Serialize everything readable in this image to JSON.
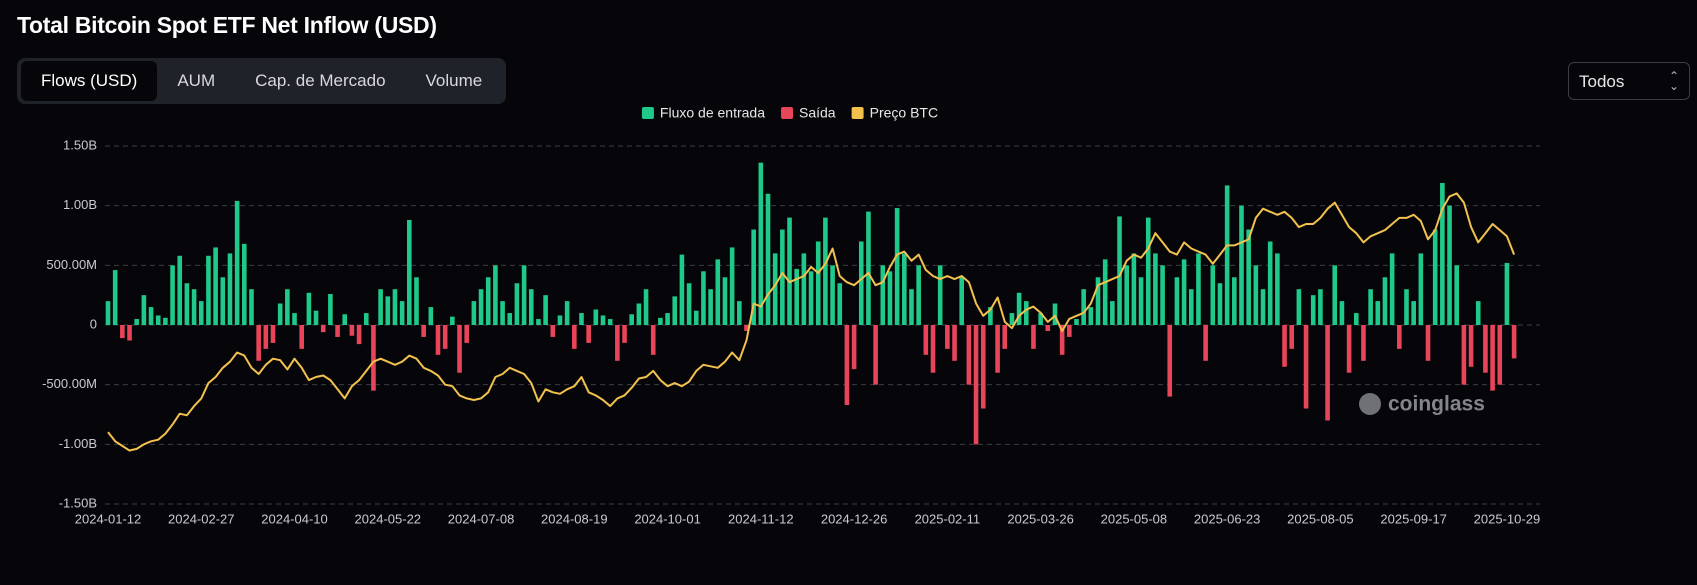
{
  "tabs": [
    "Flows (USD)",
    "AUM",
    "Cap. de Mercado",
    "Volume"
  ],
  "selector": "Todos",
  "chart_data": {
    "type": "bar",
    "title": "Total Bitcoin Spot ETF Net Inflow (USD)",
    "watermark": "coinglass",
    "grid": true,
    "ylim": [
      -1500000000,
      1500000000
    ],
    "yticks": [
      {
        "value": -1500000000,
        "label": "-1.50B"
      },
      {
        "value": -1000000000,
        "label": "-1.00B"
      },
      {
        "value": -500000000,
        "label": "-500.00M"
      },
      0,
      {
        "value": 500000000,
        "label": "500.00M"
      },
      {
        "value": 1000000000,
        "label": "1.00B"
      },
      {
        "value": 1500000000,
        "label": "1.50B"
      }
    ],
    "y2lim": [
      22500,
      139500
    ],
    "categories": [
      "2024-01-12",
      null,
      null,
      null,
      null,
      null,
      null,
      null,
      null,
      null,
      null,
      null,
      null,
      "2024-02-27",
      null,
      null,
      null,
      null,
      null,
      null,
      null,
      null,
      null,
      null,
      null,
      null,
      "2024-04-10",
      null,
      null,
      null,
      null,
      null,
      null,
      null,
      null,
      null,
      null,
      null,
      null,
      "2024-05-22",
      null,
      null,
      null,
      null,
      null,
      null,
      null,
      null,
      null,
      null,
      null,
      null,
      "2024-07-08",
      null,
      null,
      null,
      null,
      null,
      null,
      null,
      null,
      null,
      null,
      null,
      null,
      "2024-08-19",
      null,
      null,
      null,
      null,
      null,
      null,
      null,
      null,
      null,
      null,
      null,
      null,
      "2024-10-01",
      null,
      null,
      null,
      null,
      null,
      null,
      null,
      null,
      null,
      null,
      null,
      null,
      "2024-11-12",
      null,
      null,
      null,
      null,
      null,
      null,
      null,
      null,
      null,
      null,
      null,
      null,
      "2024-12-26",
      null,
      null,
      null,
      null,
      null,
      null,
      null,
      null,
      null,
      null,
      null,
      null,
      "2025-02-11",
      null,
      null,
      null,
      null,
      null,
      null,
      null,
      null,
      null,
      null,
      null,
      null,
      "2025-03-26",
      null,
      null,
      null,
      null,
      null,
      null,
      null,
      null,
      null,
      null,
      null,
      null,
      "2025-05-08",
      null,
      null,
      null,
      null,
      null,
      null,
      null,
      null,
      null,
      null,
      null,
      null,
      "2025-06-23",
      null,
      null,
      null,
      null,
      null,
      null,
      null,
      null,
      null,
      null,
      null,
      null,
      "2025-08-05",
      null,
      null,
      null,
      null,
      null,
      null,
      null,
      null,
      null,
      null,
      null,
      null,
      "2025-09-17",
      null,
      null,
      null,
      null,
      null,
      null,
      null,
      null,
      null,
      null,
      null,
      null,
      "2025-10-29",
      null
    ],
    "series": [
      {
        "name": "Fluxo de entrada",
        "color": "#1fc98a",
        "values": [
          200000000.0,
          460000000.0,
          null,
          null,
          50000000.0,
          250000000.0,
          150000000.0,
          80000000.0,
          60000000.0,
          500000000.0,
          580000000.0,
          350000000.0,
          300000000.0,
          200000000.0,
          580000000.0,
          650000000.0,
          400000000.0,
          600000000.0,
          1040000000.0,
          680000000.0,
          300000000.0,
          null,
          null,
          null,
          180000000.0,
          300000000.0,
          100000000.0,
          null,
          270000000.0,
          120000000.0,
          null,
          260000000.0,
          null,
          90000000.0,
          null,
          null,
          100000000.0,
          null,
          300000000.0,
          240000000.0,
          300000000.0,
          200000000.0,
          880000000.0,
          400000000.0,
          null,
          150000000.0,
          null,
          null,
          70000000.0,
          null,
          null,
          200000000.0,
          300000000.0,
          400000000.0,
          500000000.0,
          200000000.0,
          100000000.0,
          350000000.0,
          500000000.0,
          300000000.0,
          50000000.0,
          250000000.0,
          null,
          80000000.0,
          200000000.0,
          null,
          100000000.0,
          null,
          130000000.0,
          80000000.0,
          50000000.0,
          null,
          null,
          90000000.0,
          180000000.0,
          300000000.0,
          null,
          60000000.0,
          100000000.0,
          240000000.0,
          590000000.0,
          350000000.0,
          120000000.0,
          450000000.0,
          300000000.0,
          550000000.0,
          400000000.0,
          650000000.0,
          200000000.0,
          null,
          800000000.0,
          1360000000.0,
          1100000000.0,
          600000000.0,
          800000000.0,
          900000000.0,
          470000000.0,
          600000000.0,
          450000000.0,
          700000000.0,
          900000000.0,
          500000000.0,
          350000000.0,
          null,
          null,
          700000000.0,
          950000000.0,
          null,
          500000000.0,
          450000000.0,
          980000000.0,
          600000000.0,
          300000000.0,
          500000000.0,
          null,
          null,
          500000000.0,
          null,
          null,
          400000000.0,
          null,
          null,
          null,
          150000000.0,
          null,
          null,
          100000000.0,
          270000000.0,
          200000000.0,
          null,
          100000000.0,
          null,
          180000000.0,
          null,
          null,
          50000000.0,
          300000000.0,
          150000000.0,
          400000000.0,
          550000000.0,
          200000000.0,
          910000000.0,
          500000000.0,
          600000000.0,
          400000000.0,
          900000000.0,
          600000000.0,
          500000000.0,
          null,
          400000000.0,
          550000000.0,
          300000000.0,
          600000000.0,
          null,
          500000000.0,
          350000000.0,
          1170000000.0,
          400000000.0,
          1000000000.0,
          800000000.0,
          500000000.0,
          300000000.0,
          700000000.0,
          600000000.0,
          null,
          null,
          300000000.0,
          null,
          250000000.0,
          300000000.0,
          null,
          500000000.0,
          200000000.0,
          null,
          100000000.0,
          null,
          300000000.0,
          200000000.0,
          400000000.0,
          600000000.0,
          null,
          300000000.0,
          200000000.0,
          600000000.0,
          null,
          800000000.0,
          1190000000.0,
          1000000000.0,
          500000000.0,
          null,
          null,
          200000000.0,
          null,
          null,
          null,
          520000000.0,
          null
        ]
      },
      {
        "name": "Saída",
        "color": "#e8445a",
        "values": [
          null,
          null,
          -110000000.0,
          -130000000.0,
          null,
          null,
          null,
          null,
          null,
          null,
          null,
          null,
          null,
          null,
          null,
          null,
          null,
          null,
          null,
          null,
          null,
          -300000000.0,
          -200000000.0,
          -150000000.0,
          null,
          null,
          null,
          -200000000.0,
          null,
          null,
          -60000000.0,
          null,
          -100000000.0,
          null,
          -90000000.0,
          -160000000.0,
          null,
          -550000000.0,
          null,
          null,
          null,
          null,
          null,
          null,
          -100000000.0,
          null,
          -250000000.0,
          -200000000.0,
          null,
          -400000000.0,
          -150000000.0,
          null,
          null,
          null,
          null,
          null,
          null,
          null,
          null,
          null,
          null,
          null,
          -100000000.0,
          null,
          null,
          -200000000.0,
          null,
          -150000000.0,
          null,
          null,
          null,
          -300000000.0,
          -150000000.0,
          null,
          null,
          null,
          -250000000.0,
          null,
          null,
          null,
          null,
          null,
          null,
          null,
          null,
          null,
          null,
          null,
          null,
          -50000000.0,
          null,
          null,
          null,
          null,
          null,
          null,
          null,
          null,
          null,
          null,
          null,
          null,
          null,
          -670000000.0,
          -370000000.0,
          null,
          null,
          -500000000.0,
          null,
          null,
          null,
          null,
          null,
          null,
          -250000000.0,
          -400000000.0,
          null,
          -200000000.0,
          -300000000.0,
          null,
          -500000000.0,
          -1000000000.0,
          -700000000.0,
          null,
          -400000000.0,
          -200000000.0,
          null,
          null,
          null,
          -200000000.0,
          null,
          -50000000.0,
          null,
          -250000000.0,
          -100000000.0,
          null,
          null,
          null,
          null,
          null,
          null,
          null,
          null,
          null,
          null,
          null,
          null,
          null,
          -600000000.0,
          null,
          null,
          null,
          null,
          -300000000.0,
          null,
          null,
          null,
          null,
          null,
          null,
          null,
          null,
          null,
          null,
          -350000000.0,
          -200000000.0,
          null,
          -700000000.0,
          null,
          null,
          -800000000.0,
          null,
          null,
          -400000000.0,
          null,
          -300000000.0,
          null,
          null,
          null,
          null,
          -200000000.0,
          null,
          null,
          null,
          -300000000.0,
          null,
          null,
          null,
          null,
          -500000000.0,
          -350000000.0,
          null,
          -400000000.0,
          -550000000.0,
          -500000000.0,
          null,
          -280000000.0
        ]
      },
      {
        "name": "Preço BTC",
        "color": "#f2c14e",
        "axis": "y2",
        "type": "line",
        "values": [
          46000,
          43000,
          41500,
          40000,
          40500,
          42000,
          43000,
          43500,
          45500,
          48500,
          52000,
          51500,
          54500,
          57000,
          62000,
          64000,
          67000,
          69000,
          72000,
          71000,
          67000,
          65000,
          68000,
          70000,
          69500,
          66500,
          70000,
          67000,
          63000,
          64000,
          64500,
          63000,
          60000,
          57000,
          61000,
          63000,
          66000,
          69000,
          70000,
          69000,
          68000,
          69000,
          71000,
          70000,
          67000,
          66000,
          64500,
          61500,
          61000,
          58000,
          57000,
          56500,
          57000,
          59000,
          64000,
          65000,
          67000,
          66000,
          65000,
          62000,
          56000,
          60000,
          59000,
          58500,
          60000,
          61000,
          64000,
          59000,
          58000,
          56500,
          54500,
          57000,
          58000,
          60500,
          63500,
          64000,
          66000,
          63000,
          61000,
          62000,
          61000,
          62500,
          66000,
          68000,
          67500,
          67000,
          69000,
          72000,
          69500,
          76000,
          88000,
          87000,
          91000,
          94000,
          98000,
          95000,
          96000,
          97000,
          100000,
          98000,
          101000,
          106000,
          97000,
          95000,
          94000,
          96000,
          98000,
          94000,
          95000,
          100000,
          104000,
          105000,
          102000,
          104000,
          99000,
          97000,
          96000,
          97000,
          96000,
          97000,
          95000,
          88000,
          84000,
          86000,
          90000,
          82000,
          80000,
          84000,
          86000,
          87000,
          85000,
          82000,
          84000,
          79000,
          83000,
          84000,
          85000,
          88000,
          94000,
          95000,
          96000,
          97000,
          102000,
          104000,
          103000,
          106000,
          111000,
          108000,
          105000,
          104000,
          108000,
          106000,
          105000,
          104000,
          101000,
          104000,
          107000,
          107000,
          108000,
          109000,
          116000,
          119000,
          118000,
          117000,
          118000,
          116000,
          113000,
          114000,
          114000,
          116000,
          119000,
          121000,
          117000,
          113000,
          111000,
          108000,
          110000,
          111000,
          112000,
          114000,
          116000,
          116000,
          117000,
          115000,
          109000,
          112000,
          119000,
          123000,
          124000,
          121000,
          113000,
          108000,
          111000,
          114000,
          112000,
          110000,
          104000
        ]
      }
    ]
  }
}
